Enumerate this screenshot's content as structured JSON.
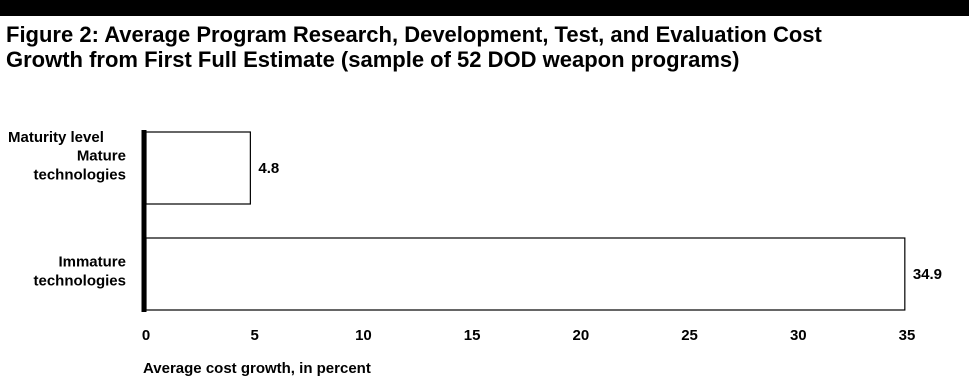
{
  "figure": {
    "title_line1": "Figure 2: Average Program Research, Development, Test, and Evaluation Cost",
    "title_line2": "Growth from First Full Estimate (sample of 52 DOD weapon programs)"
  },
  "chart_data": {
    "type": "bar",
    "orientation": "horizontal",
    "categories": [
      [
        "Mature",
        "technologies"
      ],
      [
        "Immature",
        "technologies"
      ]
    ],
    "values": [
      4.8,
      34.9
    ],
    "value_labels": [
      "4.8",
      "34.9"
    ],
    "ylabel": "Maturity level",
    "xlabel": "Average cost growth, in percent",
    "xlim": [
      0,
      35
    ],
    "xticks": [
      "0",
      "5",
      "10",
      "15",
      "20",
      "25",
      "30",
      "35"
    ],
    "grid": false,
    "legend": "none",
    "colors": {
      "bar_fill": "#ffffff",
      "bar_stroke": "#000000",
      "axis": "#000000",
      "band": "#000000"
    }
  }
}
